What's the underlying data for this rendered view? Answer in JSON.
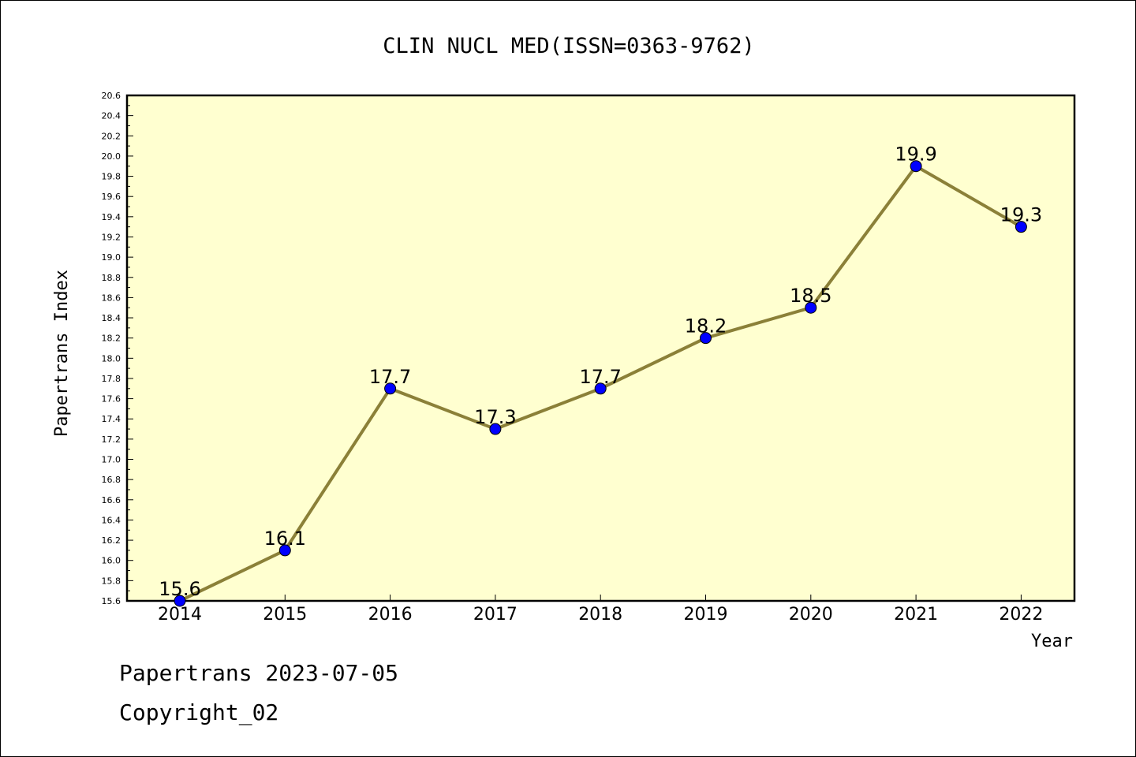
{
  "chart_data": {
    "type": "line",
    "title": "CLIN NUCL MED(ISSN=0363-9762)",
    "xlabel": "Year",
    "ylabel": "Papertrans Index",
    "categories": [
      "2014",
      "2015",
      "2016",
      "2017",
      "2018",
      "2019",
      "2020",
      "2021",
      "2022"
    ],
    "series": [
      {
        "values": [
          15.6,
          16.1,
          17.7,
          17.3,
          17.7,
          18.2,
          18.5,
          19.9,
          19.3
        ]
      }
    ],
    "data_labels": [
      "15.6",
      "16.1",
      "17.7",
      "17.3",
      "17.7",
      "18.2",
      "18.5",
      "19.9",
      "19.3"
    ],
    "ylim": [
      15.6,
      20.6
    ],
    "yticks": [
      "15.6",
      "15.8",
      "16.0",
      "16.2",
      "16.4",
      "16.6",
      "16.8",
      "17.0",
      "17.2",
      "17.4",
      "17.6",
      "17.8",
      "18.0",
      "18.2",
      "18.4",
      "18.6",
      "18.8",
      "19.0",
      "19.2",
      "19.4",
      "19.6",
      "19.8",
      "20.0",
      "20.2",
      "20.4",
      "20.6"
    ],
    "grid": false,
    "colors": {
      "plot_background": "#ffffd0",
      "line": "#8b8038",
      "marker": "#0000ff"
    }
  },
  "footer": {
    "date_line": "Papertrans 2023-07-05",
    "copyright": "Copyright_02"
  }
}
